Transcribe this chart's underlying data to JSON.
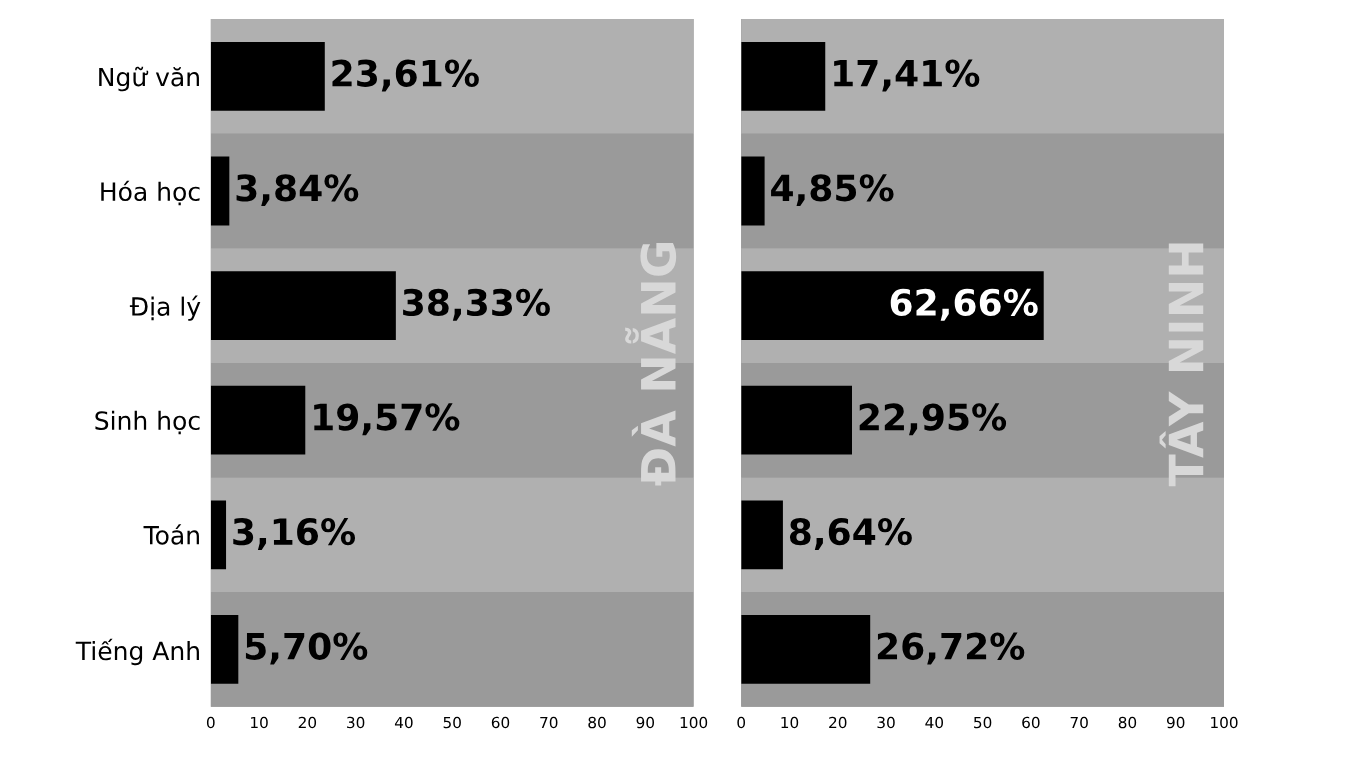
{
  "chart_data": [
    {
      "type": "bar",
      "orientation": "horizontal",
      "title": "ĐÀ NẴNG",
      "categories": [
        "Ngữ văn",
        "Hóa học",
        "Địa lý",
        "Sinh học",
        "Toán",
        "Tiếng Anh"
      ],
      "values": [
        23.61,
        3.84,
        38.33,
        19.57,
        3.16,
        5.7
      ],
      "value_labels": [
        "23,61%",
        "3,84%",
        "38,33%",
        "19,57%",
        "3,16%",
        "5,70%"
      ],
      "color": "#000000",
      "xlim": [
        0,
        100
      ],
      "xticks": [
        0,
        10,
        20,
        30,
        40,
        50,
        60,
        70,
        80,
        90,
        100
      ],
      "grid": false
    },
    {
      "type": "bar",
      "orientation": "horizontal",
      "title": "TÂY NINH",
      "categories": [
        null,
        null,
        null,
        null,
        null,
        null
      ],
      "values": [
        17.41,
        4.85,
        62.66,
        22.95,
        8.64,
        26.72
      ],
      "value_labels": [
        "17,41%",
        "4,85%",
        "62,66%",
        "22,95%",
        "8,64%",
        "26,72%"
      ],
      "color": "#000000",
      "xlim": [
        0,
        100
      ],
      "xticks": [
        0,
        10,
        20,
        30,
        40,
        50,
        60,
        70,
        80,
        90,
        100
      ],
      "grid": false,
      "tick_labels": "x"
    }
  ]
}
